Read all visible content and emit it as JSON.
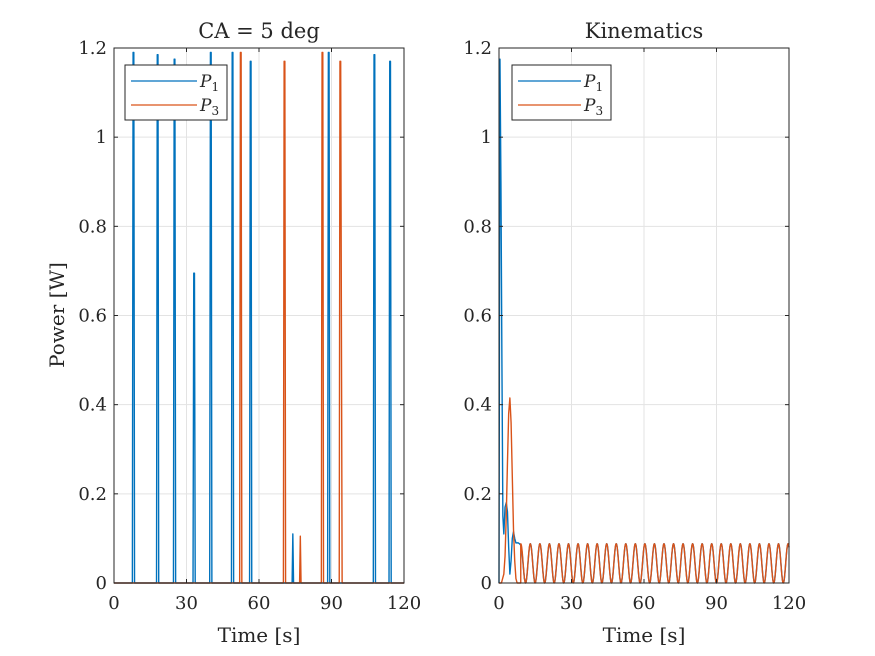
{
  "chart_data": [
    {
      "type": "line",
      "title": "CA = 5 deg",
      "xlabel": "Time [s]",
      "ylabel": "Power [W]",
      "xlim": [
        0,
        120
      ],
      "ylim": [
        0,
        1.2
      ],
      "xticks": [
        0,
        30,
        60,
        90,
        120
      ],
      "yticks": [
        0,
        0.2,
        0.4,
        0.6,
        0.8,
        1,
        1.2
      ],
      "xtick_labels": [
        "0",
        "30",
        "60",
        "90",
        "120"
      ],
      "ytick_labels": [
        "0",
        "0.2",
        "0.4",
        "0.6",
        "0.8",
        "1",
        "1.2"
      ],
      "grid": true,
      "legend_position": "top-left",
      "series": [
        {
          "name": "P",
          "subscript": "1",
          "color": "#0072BD",
          "x": [
            0,
            7.6,
            7.9,
            8.2,
            8.5,
            17.6,
            17.9,
            18.2,
            18.5,
            24.6,
            24.9,
            25.2,
            25.5,
            32.7,
            33.0,
            33.3,
            33.6,
            39.6,
            39.9,
            40.2,
            40.5,
            48.6,
            48.9,
            49.2,
            49.5,
            56.1,
            56.4,
            56.7,
            57.0,
            73.7,
            74.0,
            74.3,
            88.4,
            88.7,
            89.0,
            89.3,
            107.3,
            107.6,
            107.9,
            108.2,
            113.8,
            114.1,
            114.4,
            114.7,
            120
          ],
          "y": [
            0,
            0,
            1.19,
            1.19,
            0,
            0,
            1.185,
            1.185,
            0,
            0,
            1.175,
            1.175,
            0,
            0,
            0.695,
            0.695,
            0,
            0,
            1.19,
            1.19,
            0,
            0,
            1.19,
            1.19,
            0,
            0,
            1.17,
            1.17,
            0,
            0,
            0.11,
            0,
            0,
            1.19,
            1.19,
            0,
            0,
            1.185,
            1.185,
            0,
            0,
            1.17,
            1.17,
            0,
            0
          ]
        },
        {
          "name": "P",
          "subscript": "3",
          "color": "#D95319",
          "x": [
            0,
            52.0,
            52.3,
            52.6,
            52.9,
            70.1,
            70.4,
            70.7,
            71.0,
            76.8,
            77.1,
            77.4,
            85.8,
            86.1,
            86.4,
            86.7,
            93.2,
            93.5,
            93.8,
            94.4,
            120
          ],
          "y": [
            0,
            0,
            1.19,
            1.19,
            0,
            0,
            1.17,
            1.17,
            0,
            0,
            0.105,
            0,
            0,
            1.19,
            1.19,
            0,
            0,
            1.17,
            1.17,
            0,
            0
          ]
        }
      ]
    },
    {
      "type": "line",
      "title": "Kinematics",
      "xlabel": "Time [s]",
      "ylabel": "",
      "xlim": [
        0,
        120
      ],
      "ylim": [
        0,
        1.2
      ],
      "xticks": [
        0,
        30,
        60,
        90,
        120
      ],
      "yticks": [
        0,
        0.2,
        0.4,
        0.6,
        0.8,
        1,
        1.2
      ],
      "xtick_labels": [
        "0",
        "30",
        "60",
        "90",
        "120"
      ],
      "ytick_labels": [
        "0",
        "0.2",
        "0.4",
        "0.6",
        "0.8",
        "1",
        "1.2"
      ],
      "grid": true,
      "legend_position": "top-left",
      "series": [
        {
          "name": "P",
          "subscript": "1",
          "color": "#0072BD",
          "x": [
            0,
            0.4,
            0.8,
            1.2,
            1.6,
            2.0,
            2.5,
            3.0,
            3.5,
            4.0,
            4.5,
            5.0,
            5.5,
            6.0,
            6.5,
            7.0,
            7.5,
            8.0,
            8.5,
            9.0,
            9.5,
            10.0,
            10.5,
            11.0
          ],
          "y": [
            0,
            1.175,
            0.9,
            0.5,
            0.15,
            0.11,
            0.17,
            0.18,
            0.16,
            0.08,
            0.02,
            0.05,
            0.1,
            0.115,
            0.1,
            0.09,
            0.09,
            0.09,
            0.088,
            0.085,
            0.07,
            0.04,
            0.01,
            0.0
          ],
          "oscillation": {
            "from": 11,
            "to": 120,
            "period": 3.95,
            "amplitude": 0.088,
            "phase_offset": 11
          }
        },
        {
          "name": "P",
          "subscript": "3",
          "color": "#D95319",
          "x": [
            0,
            1.0,
            2.0,
            2.5,
            3.0,
            3.5,
            4.0,
            4.5,
            5.0,
            5.5,
            6.0,
            6.5,
            7.0,
            7.5,
            8.0,
            9.0
          ],
          "y": [
            0,
            0.0,
            0.02,
            0.06,
            0.15,
            0.27,
            0.38,
            0.415,
            0.36,
            0.24,
            0.12,
            0.05,
            0.01,
            0.0,
            0.0,
            0.0
          ],
          "oscillation": {
            "from": 9,
            "to": 120,
            "period": 3.95,
            "amplitude": 0.088,
            "phase_offset": 10.98
          }
        }
      ]
    }
  ]
}
